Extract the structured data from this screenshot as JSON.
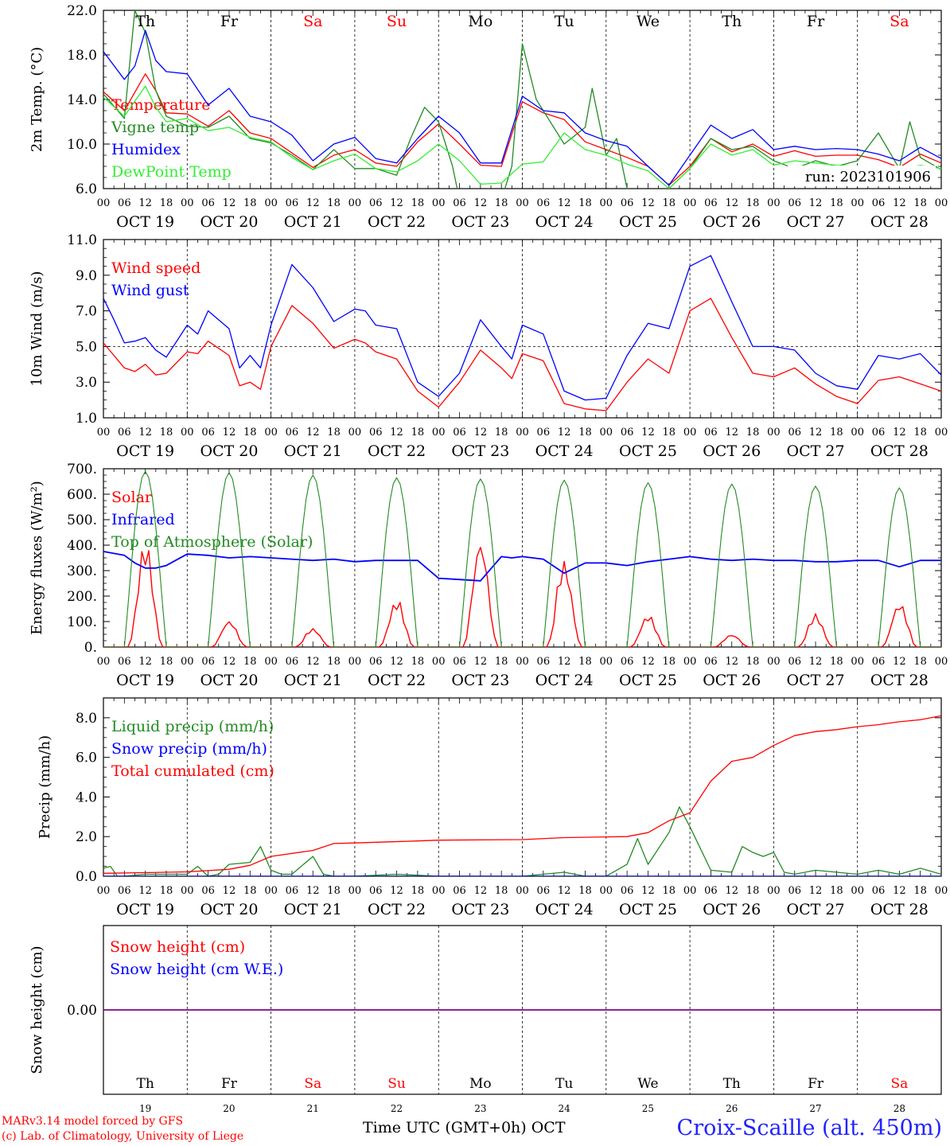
{
  "footer": {
    "model": "MARv3.14 model forced by GFS",
    "credit": "(c) Lab. of Climatology, University of Liege",
    "axis_title": "Time UTC (GMT+0h) OCT",
    "station": "Croix-Scaille (alt. 450m)"
  },
  "time_axis": {
    "hour_labels": [
      "00",
      "06",
      "12",
      "18"
    ],
    "final_hour_label": "00",
    "date_labels": [
      "OCT 19",
      "OCT 20",
      "OCT 21",
      "OCT 22",
      "OCT 23",
      "OCT 24",
      "OCT 25",
      "OCT 26",
      "OCT 27",
      "OCT 28"
    ],
    "day_names": [
      "Th",
      "Fr",
      "Sa",
      "Su",
      "Mo",
      "Tu",
      "We",
      "Th",
      "Fr",
      "Sa"
    ],
    "day_numbers": [
      "19",
      "20",
      "21",
      "22",
      "23",
      "24",
      "25",
      "26",
      "27",
      "28"
    ],
    "weekend_days": [
      2,
      3,
      9
    ]
  },
  "colors": {
    "red": "#ff0000",
    "blue": "#0000ff",
    "darkgreen": "#228b22",
    "lightgreen": "#33ee33",
    "purple": "#800080",
    "axis": "#000000"
  },
  "chart_data": [
    {
      "id": "temp",
      "type": "line",
      "ylabel": "2m Temp. (°C)",
      "ylim": [
        6,
        22
      ],
      "yticks": [
        "6.0",
        "10.0",
        "14.0",
        "18.0",
        "22.0"
      ],
      "run_label": "run: 2023101906",
      "x_unit": "hours since OCT 19 00 UTC",
      "series": [
        {
          "name": "Temperature",
          "color": "red",
          "x": [
            0,
            6,
            12,
            15,
            18,
            24,
            30,
            36,
            42,
            48,
            54,
            60,
            66,
            72,
            78,
            84,
            90,
            96,
            102,
            108,
            114,
            120,
            126,
            132,
            138,
            144,
            150,
            156,
            162,
            168,
            174,
            180,
            186,
            192,
            198,
            204,
            210,
            216,
            222,
            228,
            234,
            240
          ],
          "y": [
            14.7,
            13.0,
            16.3,
            14.8,
            12.8,
            12.7,
            11.6,
            13.0,
            11.0,
            10.5,
            9.2,
            7.9,
            9.0,
            9.5,
            8.3,
            8.0,
            10.2,
            11.8,
            10.0,
            8.1,
            8.0,
            13.8,
            12.8,
            12.2,
            10.2,
            9.5,
            8.8,
            8.0,
            6.3,
            8.0,
            10.5,
            9.3,
            10.0,
            8.9,
            9.4,
            8.9,
            9.0,
            9.0,
            8.6,
            7.9,
            9.1,
            8.3
          ]
        },
        {
          "name": "Vigne temp",
          "color": "darkgreen",
          "x": [
            0,
            6,
            9,
            12,
            15,
            18,
            24,
            30,
            36,
            42,
            48,
            54,
            60,
            66,
            72,
            78,
            84,
            88,
            92,
            96,
            100,
            102,
            108,
            114,
            117,
            120,
            124,
            132,
            138,
            140,
            144,
            147,
            150,
            156,
            162,
            168,
            174,
            180,
            186,
            192,
            198,
            204,
            210,
            216,
            222,
            228,
            231,
            234,
            240
          ],
          "y": [
            14.5,
            12.3,
            22.0,
            20.0,
            14.8,
            12.5,
            11.6,
            11.5,
            12.5,
            10.5,
            10.1,
            9.0,
            7.7,
            9.5,
            7.8,
            7.8,
            7.2,
            10.5,
            13.3,
            12.0,
            8.0,
            5.0,
            5.0,
            5.0,
            8.0,
            19.0,
            14.0,
            10.0,
            11.5,
            15.0,
            9.0,
            10.5,
            6.0,
            5.0,
            6.0,
            7.8,
            10.5,
            9.5,
            9.8,
            8.5,
            7.8,
            8.5,
            8.0,
            8.5,
            11.0,
            7.8,
            12.0,
            8.8,
            7.7
          ]
        },
        {
          "name": "Humidex",
          "color": "blue",
          "x": [
            0,
            6,
            9,
            12,
            15,
            18,
            24,
            30,
            36,
            42,
            48,
            54,
            60,
            66,
            72,
            78,
            84,
            90,
            96,
            102,
            108,
            114,
            120,
            126,
            132,
            138,
            144,
            150,
            156,
            162,
            168,
            174,
            180,
            186,
            192,
            198,
            204,
            210,
            216,
            222,
            228,
            234,
            240
          ],
          "y": [
            18.3,
            15.8,
            17.0,
            20.2,
            17.5,
            16.5,
            16.3,
            13.5,
            15.0,
            12.5,
            12.0,
            10.8,
            8.5,
            10.0,
            10.6,
            8.7,
            8.3,
            10.5,
            12.5,
            11.0,
            8.3,
            8.3,
            14.3,
            13.0,
            12.8,
            11.0,
            10.3,
            9.8,
            8.0,
            6.3,
            9.0,
            11.7,
            10.5,
            11.3,
            9.5,
            9.8,
            9.5,
            9.6,
            9.5,
            9.1,
            8.5,
            9.7,
            8.7
          ]
        },
        {
          "name": "DewPoint Temp",
          "color": "lightgreen",
          "x": [
            0,
            6,
            12,
            15,
            18,
            24,
            30,
            36,
            42,
            48,
            54,
            60,
            66,
            72,
            78,
            84,
            90,
            96,
            102,
            108,
            114,
            120,
            126,
            132,
            138,
            144,
            150,
            156,
            162,
            168,
            174,
            180,
            186,
            192,
            198,
            204,
            210,
            216,
            222,
            228,
            234,
            240
          ],
          "y": [
            14.2,
            12.5,
            15.2,
            13.3,
            12.0,
            12.3,
            11.2,
            11.5,
            10.6,
            10.2,
            8.8,
            7.7,
            8.5,
            9.1,
            7.8,
            7.5,
            8.5,
            10.0,
            8.5,
            6.4,
            6.5,
            8.2,
            8.4,
            11.0,
            9.5,
            9.0,
            8.2,
            7.6,
            6.0,
            7.8,
            10.0,
            9.0,
            9.5,
            8.1,
            8.5,
            8.3,
            8.1,
            8.0,
            7.9,
            7.7,
            8.1,
            7.8
          ]
        }
      ]
    },
    {
      "id": "wind",
      "type": "line",
      "ylabel": "10m Wind (m/s)",
      "ylim": [
        1,
        11
      ],
      "yticks": [
        "1.0",
        "3.0",
        "5.0",
        "7.0",
        "9.0",
        "11.0"
      ],
      "reference_line": 5.0,
      "x_unit": "hours since OCT 19 00 UTC",
      "series": [
        {
          "name": "Wind speed",
          "color": "red",
          "x": [
            0,
            6,
            9,
            12,
            15,
            18,
            24,
            27,
            30,
            36,
            39,
            42,
            45,
            48,
            54,
            60,
            66,
            72,
            75,
            78,
            84,
            90,
            96,
            102,
            108,
            114,
            117,
            120,
            126,
            132,
            138,
            144,
            150,
            156,
            162,
            168,
            174,
            180,
            186,
            192,
            198,
            204,
            210,
            216,
            222,
            228,
            234,
            240
          ],
          "y": [
            5.2,
            3.8,
            3.6,
            4.0,
            3.4,
            3.5,
            4.7,
            4.6,
            5.3,
            4.5,
            2.8,
            3.0,
            2.6,
            5.0,
            7.3,
            6.3,
            4.9,
            5.4,
            5.2,
            4.7,
            4.3,
            2.5,
            1.6,
            3.0,
            4.8,
            3.8,
            3.2,
            4.6,
            4.2,
            1.8,
            1.5,
            1.4,
            3.0,
            4.3,
            3.5,
            7.0,
            7.7,
            5.5,
            3.5,
            3.3,
            3.8,
            2.9,
            2.2,
            1.8,
            3.1,
            3.3,
            2.9,
            2.5
          ]
        },
        {
          "name": "Wind gust",
          "color": "blue",
          "x": [
            0,
            3,
            6,
            9,
            12,
            15,
            18,
            24,
            27,
            30,
            36,
            39,
            42,
            45,
            48,
            54,
            60,
            66,
            72,
            75,
            78,
            84,
            90,
            96,
            102,
            108,
            114,
            117,
            120,
            126,
            132,
            138,
            144,
            150,
            156,
            162,
            168,
            174,
            180,
            186,
            192,
            198,
            204,
            210,
            216,
            222,
            228,
            234,
            240
          ],
          "y": [
            7.7,
            6.5,
            5.2,
            5.3,
            5.5,
            4.8,
            4.4,
            6.2,
            5.7,
            7.0,
            6.0,
            3.8,
            4.5,
            3.8,
            6.2,
            9.6,
            8.3,
            6.4,
            7.1,
            7.0,
            6.2,
            6.0,
            3.0,
            2.2,
            3.5,
            6.5,
            5.0,
            4.3,
            6.2,
            5.7,
            2.5,
            2.0,
            2.1,
            4.5,
            6.3,
            6.0,
            9.5,
            10.1,
            7.5,
            5.0,
            5.0,
            4.8,
            3.5,
            2.8,
            2.6,
            4.5,
            4.3,
            4.6,
            3.4
          ]
        }
      ]
    },
    {
      "id": "flux",
      "type": "line",
      "ylabel": "Energy fluxes (W/m²)",
      "ylim": [
        0,
        700
      ],
      "yticks": [
        "0.",
        "100.",
        "200.",
        "300.",
        "400.",
        "500.",
        "600.",
        "700."
      ],
      "x_unit": "hours since OCT 19 00 UTC",
      "toa_peaks": [
        690,
        685,
        675,
        665,
        660,
        655,
        645,
        640,
        632,
        625
      ],
      "solar_peaks": [
        430,
        115,
        80,
        195,
        470,
        360,
        135,
        55,
        135,
        190
      ],
      "series": [
        {
          "name": "Solar",
          "color": "red"
        },
        {
          "name": "Infrared",
          "color": "blue",
          "x": [
            0,
            6,
            9,
            12,
            15,
            18,
            24,
            30,
            36,
            42,
            48,
            54,
            60,
            66,
            72,
            78,
            84,
            90,
            96,
            102,
            108,
            114,
            117,
            120,
            126,
            132,
            138,
            144,
            150,
            156,
            162,
            168,
            174,
            180,
            186,
            192,
            198,
            204,
            210,
            216,
            222,
            228,
            234,
            240
          ],
          "y": [
            375,
            360,
            330,
            310,
            310,
            320,
            365,
            360,
            350,
            355,
            350,
            345,
            340,
            345,
            335,
            340,
            340,
            340,
            270,
            265,
            260,
            355,
            350,
            355,
            345,
            290,
            330,
            330,
            320,
            335,
            345,
            355,
            345,
            340,
            345,
            340,
            340,
            335,
            335,
            340,
            340,
            315,
            340,
            340
          ]
        },
        {
          "name": "Top of Atmosphere (Solar)",
          "color": "darkgreen"
        }
      ]
    },
    {
      "id": "precip",
      "type": "line",
      "ylabel": "Precip (mm/h)",
      "ylim": [
        0,
        9
      ],
      "yticks": [
        "0.0",
        "2.0",
        "4.0",
        "6.0",
        "8.0"
      ],
      "x_unit": "hours since OCT 19 00 UTC",
      "series": [
        {
          "name": "Liquid precip (mm/h)",
          "color": "darkgreen",
          "x": [
            0,
            2,
            4,
            6,
            12,
            18,
            24,
            27,
            30,
            33,
            36,
            42,
            45,
            48,
            51,
            54,
            60,
            63,
            66,
            72,
            84,
            96,
            120,
            132,
            138,
            144,
            150,
            153,
            156,
            162,
            165,
            168,
            174,
            180,
            183,
            186,
            189,
            192,
            195,
            198,
            204,
            210,
            216,
            222,
            228,
            234,
            240
          ],
          "y": [
            0.4,
            0.5,
            0.0,
            0.0,
            0.1,
            0.1,
            0.1,
            0.5,
            0.0,
            0.1,
            0.6,
            0.7,
            1.5,
            0.3,
            0.1,
            0.1,
            1.0,
            0.1,
            0.0,
            0.0,
            0.1,
            0.0,
            0.0,
            0.2,
            0.0,
            0.0,
            0.6,
            1.9,
            0.6,
            2.2,
            3.5,
            2.5,
            0.3,
            0.2,
            1.5,
            1.2,
            1.0,
            1.2,
            0.2,
            0.1,
            0.3,
            0.2,
            0.1,
            0.3,
            0.1,
            0.4,
            0.1
          ]
        },
        {
          "name": "Snow precip (mm/h)",
          "color": "blue",
          "x": [
            0,
            240
          ],
          "y": [
            0.0,
            0.0
          ]
        },
        {
          "name": "Total cumulated (cm)",
          "color": "red",
          "x": [
            0,
            12,
            24,
            36,
            42,
            48,
            60,
            66,
            72,
            90,
            96,
            120,
            132,
            150,
            156,
            162,
            168,
            174,
            180,
            186,
            192,
            198,
            204,
            210,
            216,
            222,
            228,
            234,
            240
          ],
          "y": [
            0.15,
            0.18,
            0.22,
            0.35,
            0.55,
            1.0,
            1.3,
            1.65,
            1.68,
            1.78,
            1.82,
            1.85,
            1.95,
            2.0,
            2.2,
            2.8,
            3.2,
            4.8,
            5.8,
            6.0,
            6.6,
            7.1,
            7.3,
            7.4,
            7.55,
            7.65,
            7.8,
            7.9,
            8.1
          ]
        }
      ]
    },
    {
      "id": "snow",
      "type": "line",
      "ylabel": "Snow height (cm)",
      "ylim": [
        -1,
        1
      ],
      "yticks": [
        "0.00"
      ],
      "x_unit": "hours since OCT 19 00 UTC",
      "series": [
        {
          "name": "Snow height (cm)",
          "color": "red",
          "x": [
            0,
            240
          ],
          "y": [
            0,
            0
          ]
        },
        {
          "name": "Snow height (cm W.E.)",
          "color": "blue",
          "x": [
            0,
            240
          ],
          "y": [
            0,
            0
          ]
        }
      ]
    }
  ]
}
